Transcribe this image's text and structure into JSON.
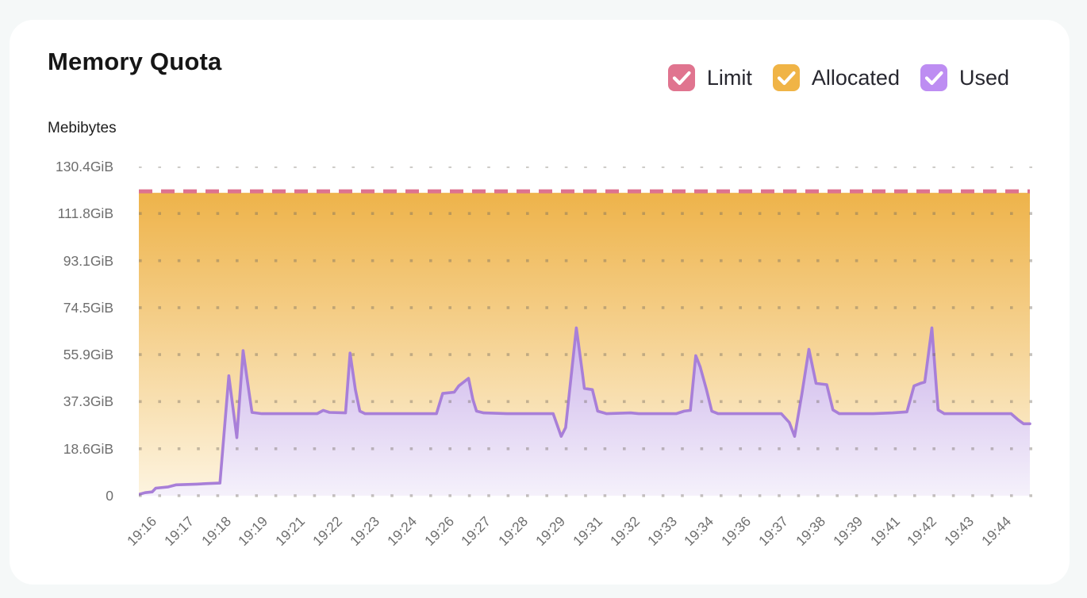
{
  "page": {
    "background": "#f5f8f8",
    "card_background": "#ffffff"
  },
  "header": {
    "title": "Memory Quota",
    "subtitle": "Mebibytes"
  },
  "legend": {
    "items": [
      {
        "label": "Limit",
        "color": "#e0748f",
        "checked": true
      },
      {
        "label": "Allocated",
        "color": "#f0b446",
        "checked": true
      },
      {
        "label": "Used",
        "color": "#bd8df2",
        "checked": true
      }
    ]
  },
  "chart_data": {
    "type": "area",
    "title": "Memory Quota",
    "ylabel": "Mebibytes",
    "ylim": [
      0,
      130.4
    ],
    "grid": "dotted-horizontal",
    "legend_position": "top-right",
    "y_ticks": [
      {
        "value": 130.4,
        "label": "130.4GiB"
      },
      {
        "value": 111.8,
        "label": "111.8GiB"
      },
      {
        "value": 93.1,
        "label": "93.1GiB"
      },
      {
        "value": 74.5,
        "label": "74.5GiB"
      },
      {
        "value": 55.9,
        "label": "55.9GiB"
      },
      {
        "value": 37.3,
        "label": "37.3GiB"
      },
      {
        "value": 18.6,
        "label": "18.6GiB"
      },
      {
        "value": 0,
        "label": "0"
      }
    ],
    "x_labels": [
      "19:16",
      "19:17",
      "19:18",
      "19:19",
      "19:21",
      "19:22",
      "19:23",
      "19:24",
      "19:26",
      "19:27",
      "19:28",
      "19:29",
      "19:31",
      "19:32",
      "19:33",
      "19:34",
      "19:36",
      "19:37",
      "19:38",
      "19:39",
      "19:41",
      "19:42",
      "19:43",
      "19:44"
    ],
    "series": [
      {
        "name": "Limit",
        "render": "dashed-line",
        "color": "#dd7390",
        "value_gib": 120.6
      },
      {
        "name": "Allocated",
        "render": "area",
        "color": "#efb54a",
        "fill_top": "#eeb34a",
        "fill_bottom": "#fdf4e0",
        "value_gib": 120
      },
      {
        "name": "Used",
        "render": "area-line",
        "color": "#a87fd8",
        "fill_top": "#ccb4ea",
        "fill_bottom": "#f5f1fb",
        "points_gib": [
          [
            0,
            0.5
          ],
          [
            0.007,
            1.2
          ],
          [
            0.015,
            1.5
          ],
          [
            0.019,
            3
          ],
          [
            0.033,
            3.5
          ],
          [
            0.042,
            4.3
          ],
          [
            0.065,
            4.6
          ],
          [
            0.077,
            4.8
          ],
          [
            0.091,
            5
          ],
          [
            0.101,
            47.5
          ],
          [
            0.11,
            23
          ],
          [
            0.117,
            57.5
          ],
          [
            0.122,
            45
          ],
          [
            0.127,
            33
          ],
          [
            0.138,
            32.5
          ],
          [
            0.2,
            32.5
          ],
          [
            0.207,
            33.8
          ],
          [
            0.214,
            33
          ],
          [
            0.232,
            32.8
          ],
          [
            0.237,
            56.5
          ],
          [
            0.243,
            42
          ],
          [
            0.248,
            33.5
          ],
          [
            0.254,
            32.5
          ],
          [
            0.334,
            32.5
          ],
          [
            0.341,
            40.5
          ],
          [
            0.354,
            41
          ],
          [
            0.359,
            43.5
          ],
          [
            0.37,
            46.5
          ],
          [
            0.375,
            38
          ],
          [
            0.379,
            33.5
          ],
          [
            0.387,
            32.8
          ],
          [
            0.414,
            32.5
          ],
          [
            0.465,
            32.5
          ],
          [
            0.474,
            23.5
          ],
          [
            0.479,
            27
          ],
          [
            0.491,
            66.5
          ],
          [
            0.498,
            48
          ],
          [
            0.5,
            42.5
          ],
          [
            0.509,
            42
          ],
          [
            0.515,
            33.5
          ],
          [
            0.525,
            32.5
          ],
          [
            0.552,
            32.8
          ],
          [
            0.561,
            32.5
          ],
          [
            0.603,
            32.5
          ],
          [
            0.612,
            33.5
          ],
          [
            0.619,
            33.8
          ],
          [
            0.625,
            55.5
          ],
          [
            0.63,
            51
          ],
          [
            0.637,
            42
          ],
          [
            0.643,
            33.5
          ],
          [
            0.65,
            32.5
          ],
          [
            0.721,
            32.5
          ],
          [
            0.73,
            29
          ],
          [
            0.736,
            23.5
          ],
          [
            0.744,
            40
          ],
          [
            0.752,
            58
          ],
          [
            0.76,
            44.5
          ],
          [
            0.772,
            44
          ],
          [
            0.779,
            34
          ],
          [
            0.786,
            32.5
          ],
          [
            0.824,
            32.5
          ],
          [
            0.846,
            32.8
          ],
          [
            0.862,
            33.2
          ],
          [
            0.87,
            43.5
          ],
          [
            0.877,
            44.5
          ],
          [
            0.882,
            45
          ],
          [
            0.89,
            66.5
          ],
          [
            0.897,
            34
          ],
          [
            0.904,
            32.5
          ],
          [
            0.979,
            32.5
          ],
          [
            0.987,
            30
          ],
          [
            0.993,
            28.5
          ],
          [
            1,
            28.5
          ]
        ]
      }
    ]
  }
}
